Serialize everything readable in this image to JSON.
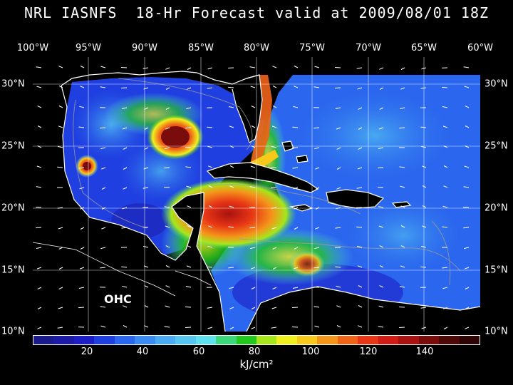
{
  "title": "NRL IASNFS  18-Hr Forecast valid at 2009/08/01 18Z",
  "map_label": "OHC",
  "units_label": "kJ/cm²",
  "lon_labels": [
    "100°W",
    "95°W",
    "90°W",
    "85°W",
    "80°W",
    "75°W",
    "70°W",
    "65°W",
    "60°W"
  ],
  "lat_labels_left": [
    "30°N",
    "25°N",
    "20°N",
    "15°N",
    "10°N"
  ],
  "lat_labels_right": [
    "30°N",
    "25°N",
    "20°N",
    "15°N",
    "10°N"
  ],
  "colorbar": {
    "ticks": [
      "20",
      "40",
      "60",
      "80",
      "100",
      "120",
      "140"
    ],
    "colors": [
      "#1a1a8c",
      "#1b1ba8",
      "#1e1ec8",
      "#1f3fe0",
      "#2a66ee",
      "#3a8cf2",
      "#4aaaf4",
      "#55c6f2",
      "#5ee0ee",
      "#3ad878",
      "#22c81e",
      "#a6e61c",
      "#f0f01e",
      "#f8c81a",
      "#f4961a",
      "#f06418",
      "#e83616",
      "#d01c14",
      "#a81210",
      "#7a0c0c",
      "#4e0808",
      "#2e0404"
    ]
  },
  "colors": {
    "land": "#000000",
    "coast": "#ffffff",
    "grid": "#ffffff",
    "ocean_low": "#1e3fd8",
    "ocean_mid": "#3a8cf2"
  }
}
